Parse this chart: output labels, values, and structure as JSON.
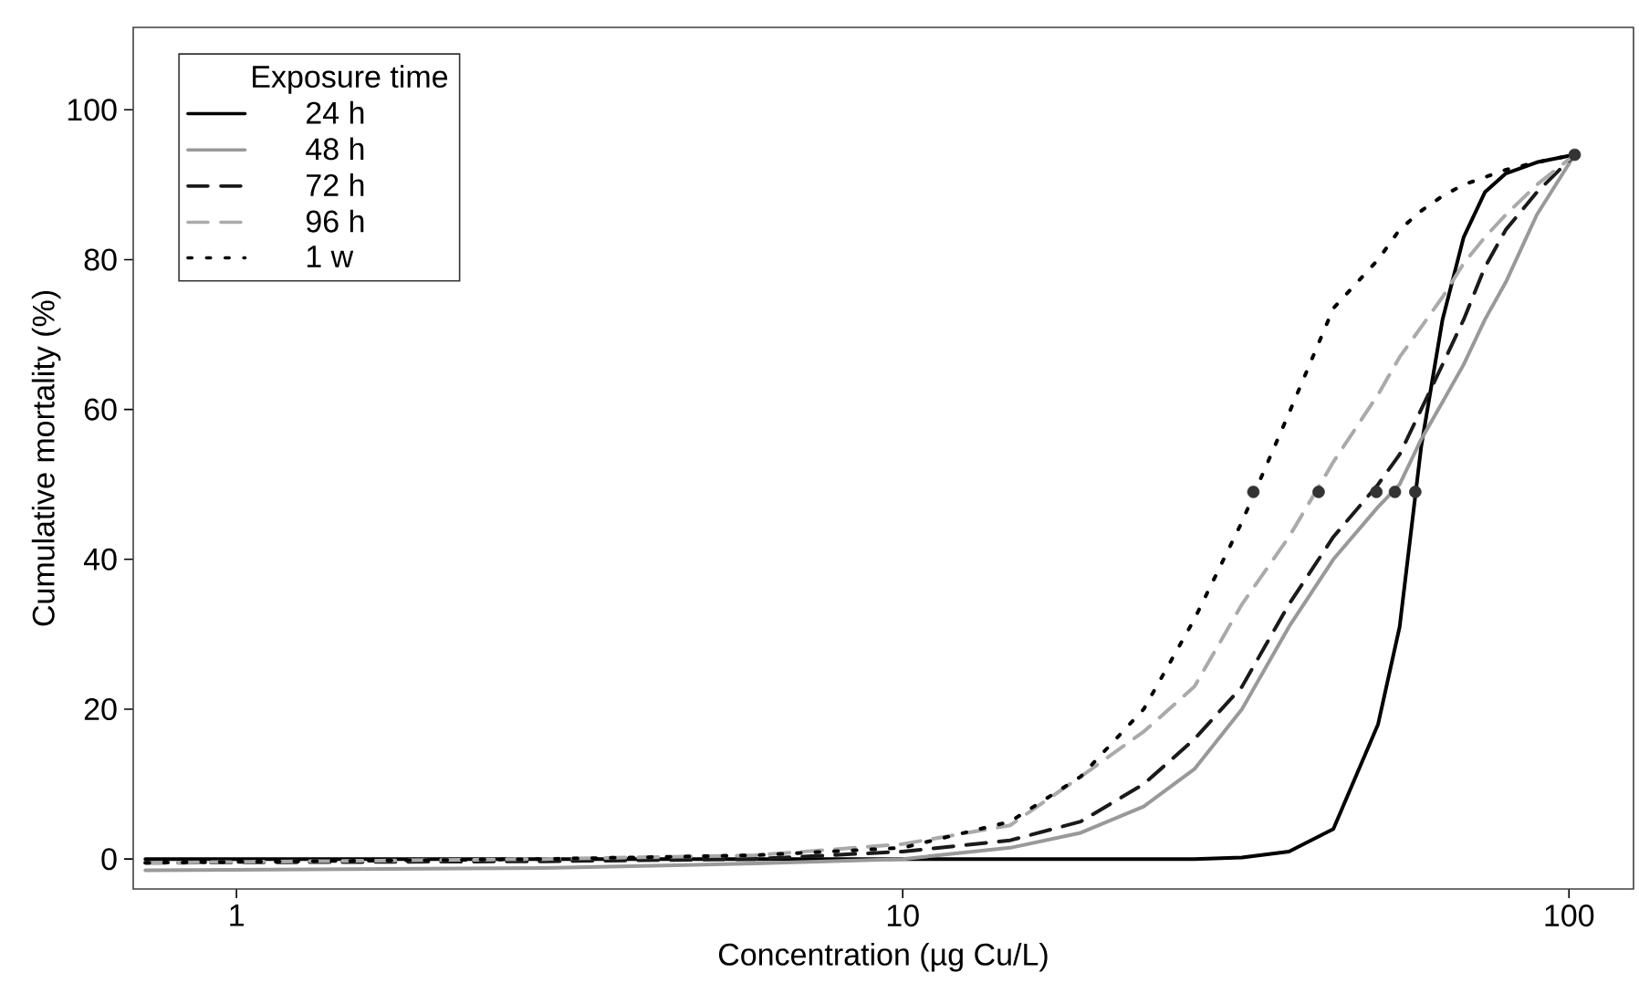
{
  "chart_data": {
    "type": "line",
    "xlabel": "Concentration (µg Cu/L)",
    "ylabel": "Cumulative mortality (%)",
    "legend_title": "Exposure time",
    "legend": "top left",
    "log": "x",
    "xlim": [
      0.7,
      125
    ],
    "ylim": [
      -4,
      111
    ],
    "xticks": [
      1,
      10,
      100
    ],
    "yticks": [
      0,
      20,
      40,
      60,
      80,
      100
    ],
    "x": [
      0.73,
      2.9,
      6,
      10,
      14.5,
      18.5,
      23,
      27.4,
      32.3,
      38,
      44.3,
      51.7,
      55.7,
      60,
      64.6,
      69.5,
      74.8,
      80.4,
      89.5,
      102
    ],
    "series": [
      {
        "name": "24 h",
        "color": "#000000",
        "line_style": "solid",
        "marker": "none",
        "values": [
          0,
          0,
          0,
          0,
          0,
          0,
          0,
          0,
          0.2,
          1,
          4,
          18,
          31,
          55,
          72,
          83,
          89,
          91.5,
          93,
          94
        ]
      },
      {
        "name": "48 h",
        "color": "#999999",
        "line_style": "solid",
        "marker": "none",
        "values": [
          -1.5,
          -1.2,
          -0.6,
          0,
          1.5,
          3.5,
          7,
          12,
          20,
          31,
          40,
          47,
          50,
          56,
          61,
          66,
          72,
          77,
          86,
          94
        ]
      },
      {
        "name": "72 h",
        "color": "#1a1a1a",
        "line_style": "dashed",
        "marker": "none",
        "values": [
          -0.5,
          -0.3,
          0,
          1,
          2.5,
          5,
          10,
          16,
          23,
          34,
          43,
          50,
          54,
          60,
          66,
          72,
          79,
          84,
          89,
          94
        ]
      },
      {
        "name": "96 h",
        "color": "#aaaaaa",
        "line_style": "dashed",
        "marker": "none",
        "values": [
          -0.5,
          0,
          0.5,
          2,
          4.5,
          11,
          17,
          23,
          34,
          43,
          53,
          62,
          67,
          71,
          75,
          79.5,
          83,
          86,
          90,
          94
        ]
      },
      {
        "name": "1 w",
        "color": "#000000",
        "line_style": "dotted",
        "marker": "none",
        "values": [
          -0.5,
          0,
          0.5,
          1.5,
          5,
          11,
          20,
          32,
          45,
          59.5,
          73.5,
          80,
          84,
          86.5,
          88.5,
          90,
          91,
          92,
          93,
          94
        ]
      },
      {
        "type": "scatter",
        "color": "#333333",
        "marker": "circle",
        "x": [
          33.6,
          42.1,
          51.4,
          54.8,
          58.8,
          102
        ],
        "values": [
          49,
          49,
          49,
          49,
          49,
          94
        ]
      }
    ]
  }
}
